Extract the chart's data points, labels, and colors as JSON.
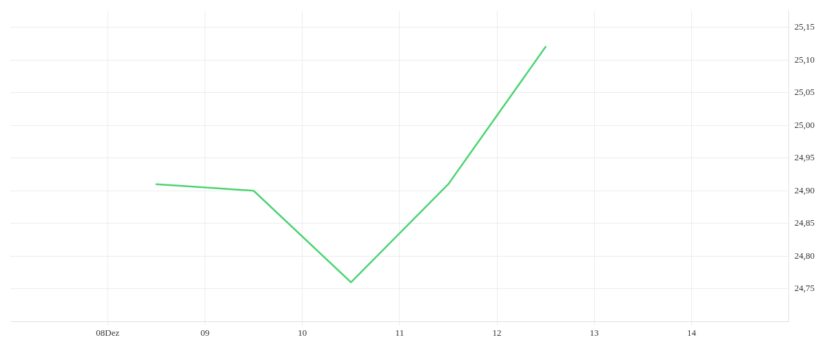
{
  "chart_data": {
    "type": "line",
    "x": [
      "--12-08T12:00",
      "--12-09T12:00",
      "--12-10T12:00",
      "--12-11T12:00",
      "--12-12T12:00"
    ],
    "series": [
      {
        "color": "#4cd473",
        "values": [
          24.91,
          24.9,
          24.76,
          24.91,
          25.12
        ]
      }
    ],
    "xlim": [
      "--12-07",
      "--12-15"
    ],
    "xticks": [
      {
        "value": "--12-08",
        "label": "08Dez"
      },
      {
        "value": "--12-09",
        "label": "09"
      },
      {
        "value": "--12-10",
        "label": "10"
      },
      {
        "value": "--12-11",
        "label": "11"
      },
      {
        "value": "--12-12",
        "label": "12"
      },
      {
        "value": "--12-13",
        "label": "13"
      },
      {
        "value": "--12-14",
        "label": "14"
      }
    ],
    "ylim": [
      24.7,
      25.175
    ],
    "yticks": [
      {
        "value": 24.7,
        "label": null
      },
      {
        "value": 24.75,
        "label": "24,75"
      },
      {
        "value": 24.8,
        "label": "24,80"
      },
      {
        "value": 24.85,
        "label": "24,85"
      },
      {
        "value": 24.9,
        "label": "24,90"
      },
      {
        "value": 24.95,
        "label": "24,95"
      },
      {
        "value": 25.0,
        "label": "25,00"
      },
      {
        "value": 25.05,
        "label": "25,05"
      },
      {
        "value": 25.1,
        "label": "25,10"
      },
      {
        "value": 25.15,
        "label": "25,15"
      }
    ],
    "grid": true,
    "marker": "none",
    "line_style": "solid"
  }
}
